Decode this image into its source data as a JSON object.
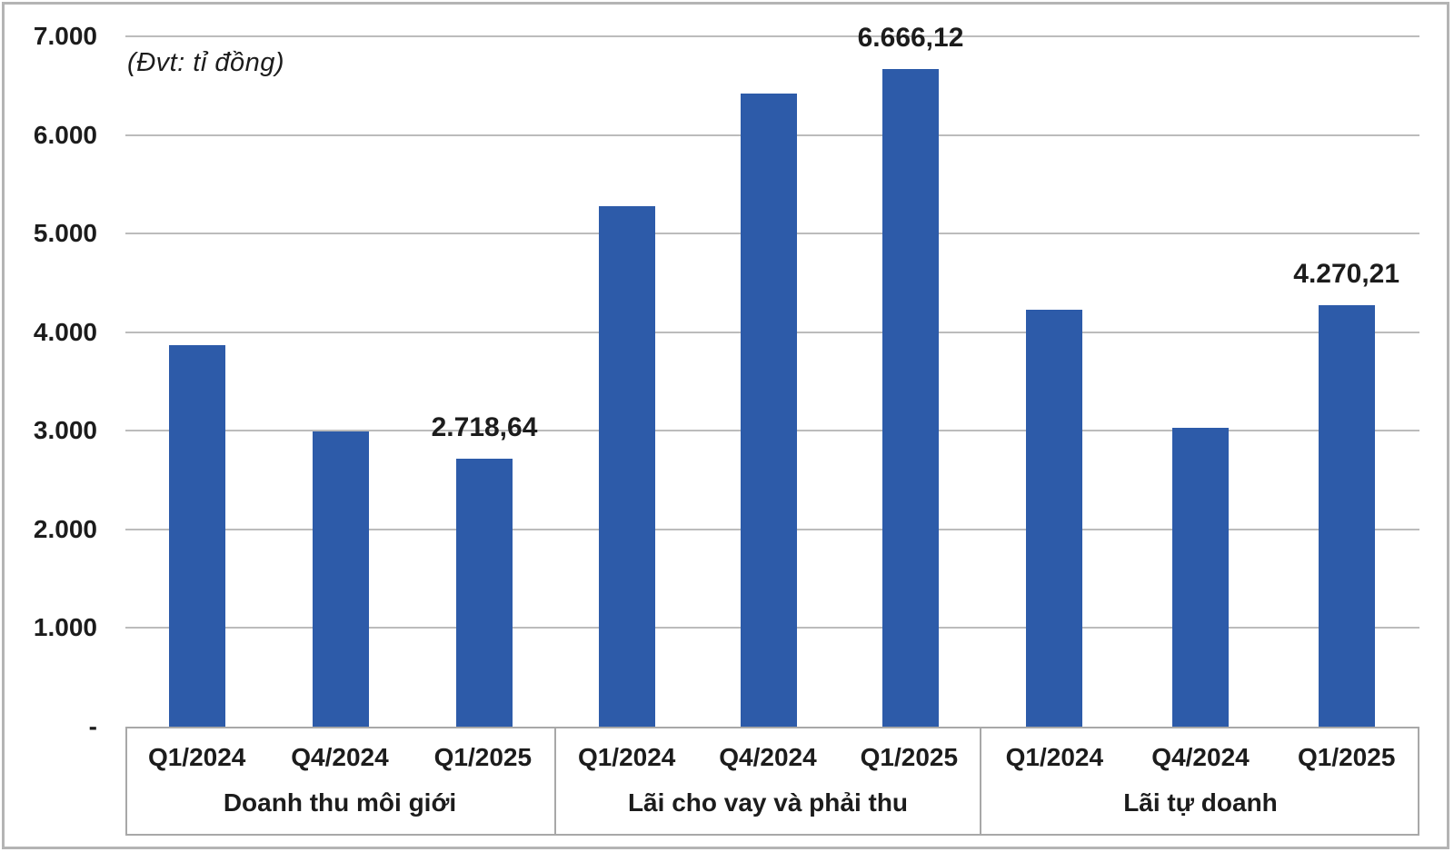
{
  "chart_data": {
    "type": "bar",
    "title": "",
    "unit_note": "(Đvt: tỉ đồng)",
    "bar_color": "#2d5ba9",
    "grid_color": "#bcbcbc",
    "ylim": [
      0,
      7000
    ],
    "grid": true,
    "legend": "none",
    "y_axis": {
      "tick_labels": [
        "7.000",
        "6.000",
        "5.000",
        "4.000",
        "3.000",
        "2.000",
        "1.000",
        "-"
      ],
      "tick_values": [
        7000,
        6000,
        5000,
        4000,
        3000,
        2000,
        1000,
        0
      ]
    },
    "categories": [
      "Q1/2024",
      "Q4/2024",
      "Q1/2025"
    ],
    "groups": [
      {
        "label": "Doanh thu môi giới",
        "categories": [
          "Q1/2024",
          "Q4/2024",
          "Q1/2025"
        ],
        "values": [
          3870,
          2990,
          2718.64
        ],
        "data_labels": [
          "",
          "",
          "2.718,64"
        ]
      },
      {
        "label": "Lãi cho vay và phải thu",
        "categories": [
          "Q1/2024",
          "Q4/2024",
          "Q1/2025"
        ],
        "values": [
          5280,
          6420,
          6666.12
        ],
        "data_labels": [
          "",
          "",
          "6.666,12"
        ]
      },
      {
        "label": "Lãi tự doanh",
        "categories": [
          "Q1/2024",
          "Q4/2024",
          "Q1/2025"
        ],
        "values": [
          4230,
          3030,
          4270.21
        ],
        "data_labels": [
          "",
          "",
          "4.270,21"
        ]
      }
    ]
  }
}
